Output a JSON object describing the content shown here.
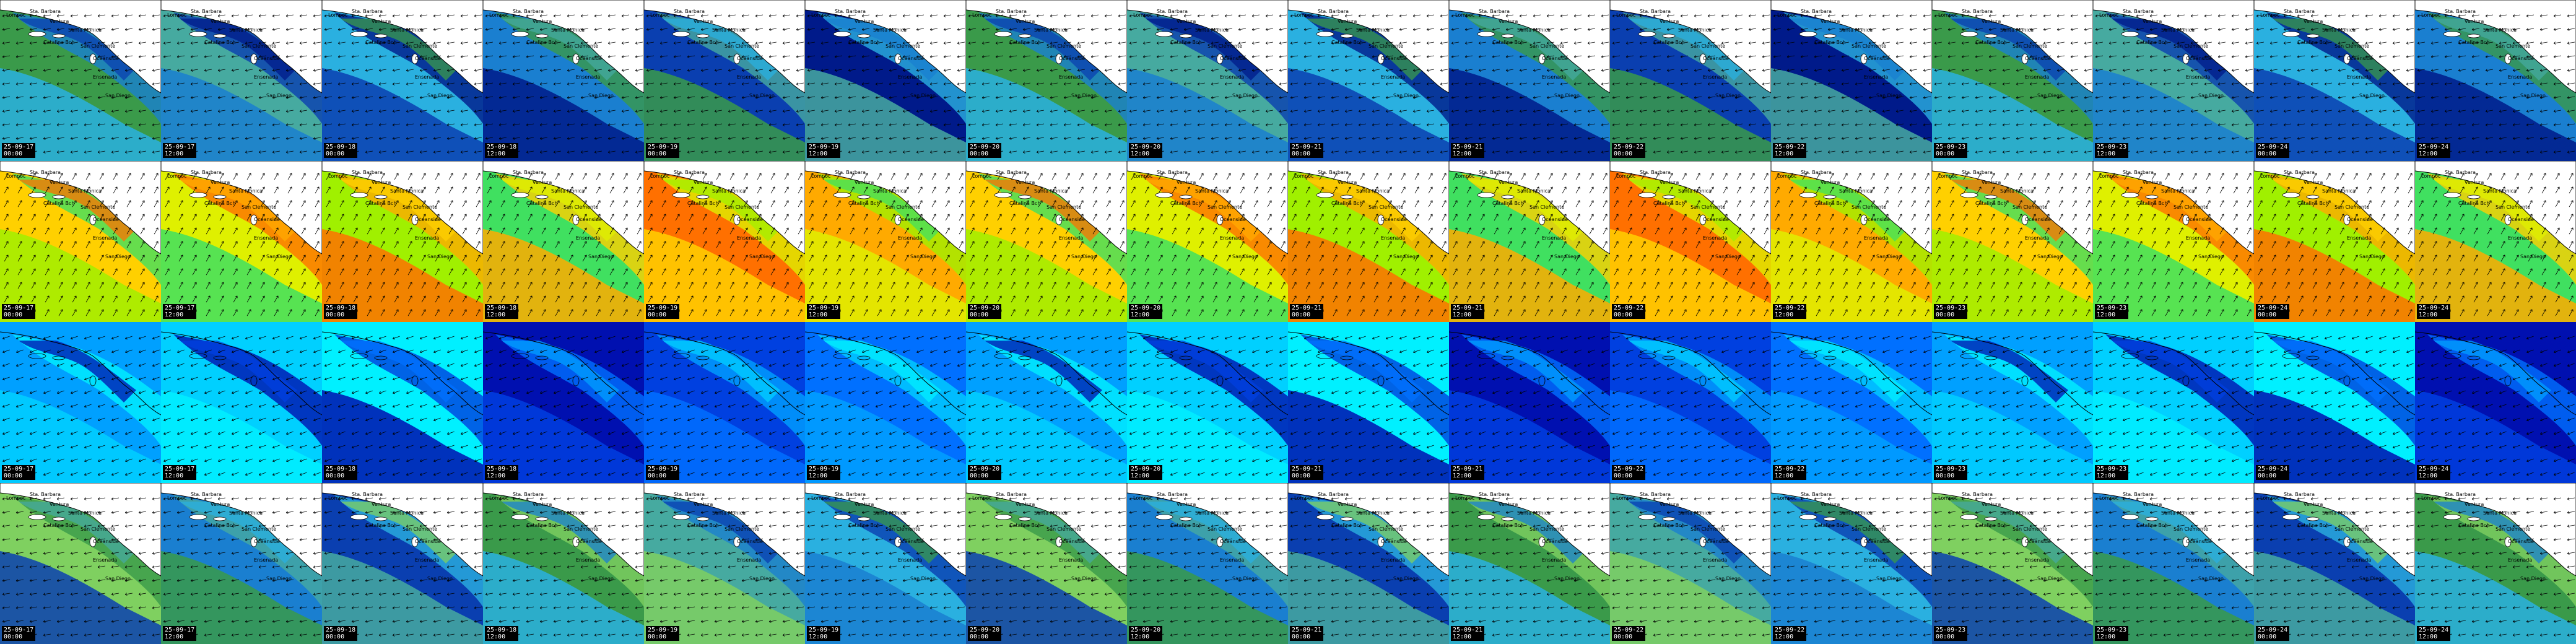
{
  "layout": {
    "columns": 16,
    "rows": 4
  },
  "timestamps": [
    {
      "date": "25-09-17",
      "time": "00:00"
    },
    {
      "date": "25-09-17",
      "time": "12:00"
    },
    {
      "date": "25-09-18",
      "time": "00:00"
    },
    {
      "date": "25-09-18",
      "time": "12:00"
    },
    {
      "date": "25-09-19",
      "time": "00:00"
    },
    {
      "date": "25-09-19",
      "time": "12:00"
    },
    {
      "date": "25-09-20",
      "time": "00:00"
    },
    {
      "date": "25-09-20",
      "time": "12:00"
    },
    {
      "date": "25-09-21",
      "time": "00:00"
    },
    {
      "date": "25-09-21",
      "time": "12:00"
    },
    {
      "date": "25-09-22",
      "time": "00:00"
    },
    {
      "date": "25-09-22",
      "time": "12:00"
    },
    {
      "date": "25-09-23",
      "time": "00:00"
    },
    {
      "date": "25-09-23",
      "time": "12:00"
    },
    {
      "date": "25-09-24",
      "time": "00:00"
    },
    {
      "date": "25-09-24",
      "time": "12:00"
    }
  ],
  "place_labels": [
    "Lompoc",
    "Sta. Barbara",
    "Ventura",
    "Santa Monica",
    "Catalina Bch",
    "San Clemente",
    "Oceanside",
    "Ensenada",
    "San Diego"
  ],
  "rows": [
    {
      "id": "row-1",
      "colors": [
        "#3a9a4a",
        "#46aaa0",
        "#2ab0e0",
        "#1a7fd0",
        "#0a3fb0",
        "#001a8a"
      ]
    },
    {
      "id": "row-2",
      "colors": [
        "#ffaa00",
        "#ffd000",
        "#dff000",
        "#a0f000",
        "#40e060",
        "#ff7000"
      ]
    },
    {
      "id": "row-3",
      "colors": [
        "#0010b0",
        "#0040e0",
        "#0070ff",
        "#00a0ff",
        "#00d0ff",
        "#00f0ff"
      ]
    },
    {
      "id": "row-4",
      "colors": [
        "#3a9a4a",
        "#46aaa0",
        "#2ab0e0",
        "#7fd060",
        "#1a7fd0",
        "#0a3fb0"
      ]
    }
  ]
}
